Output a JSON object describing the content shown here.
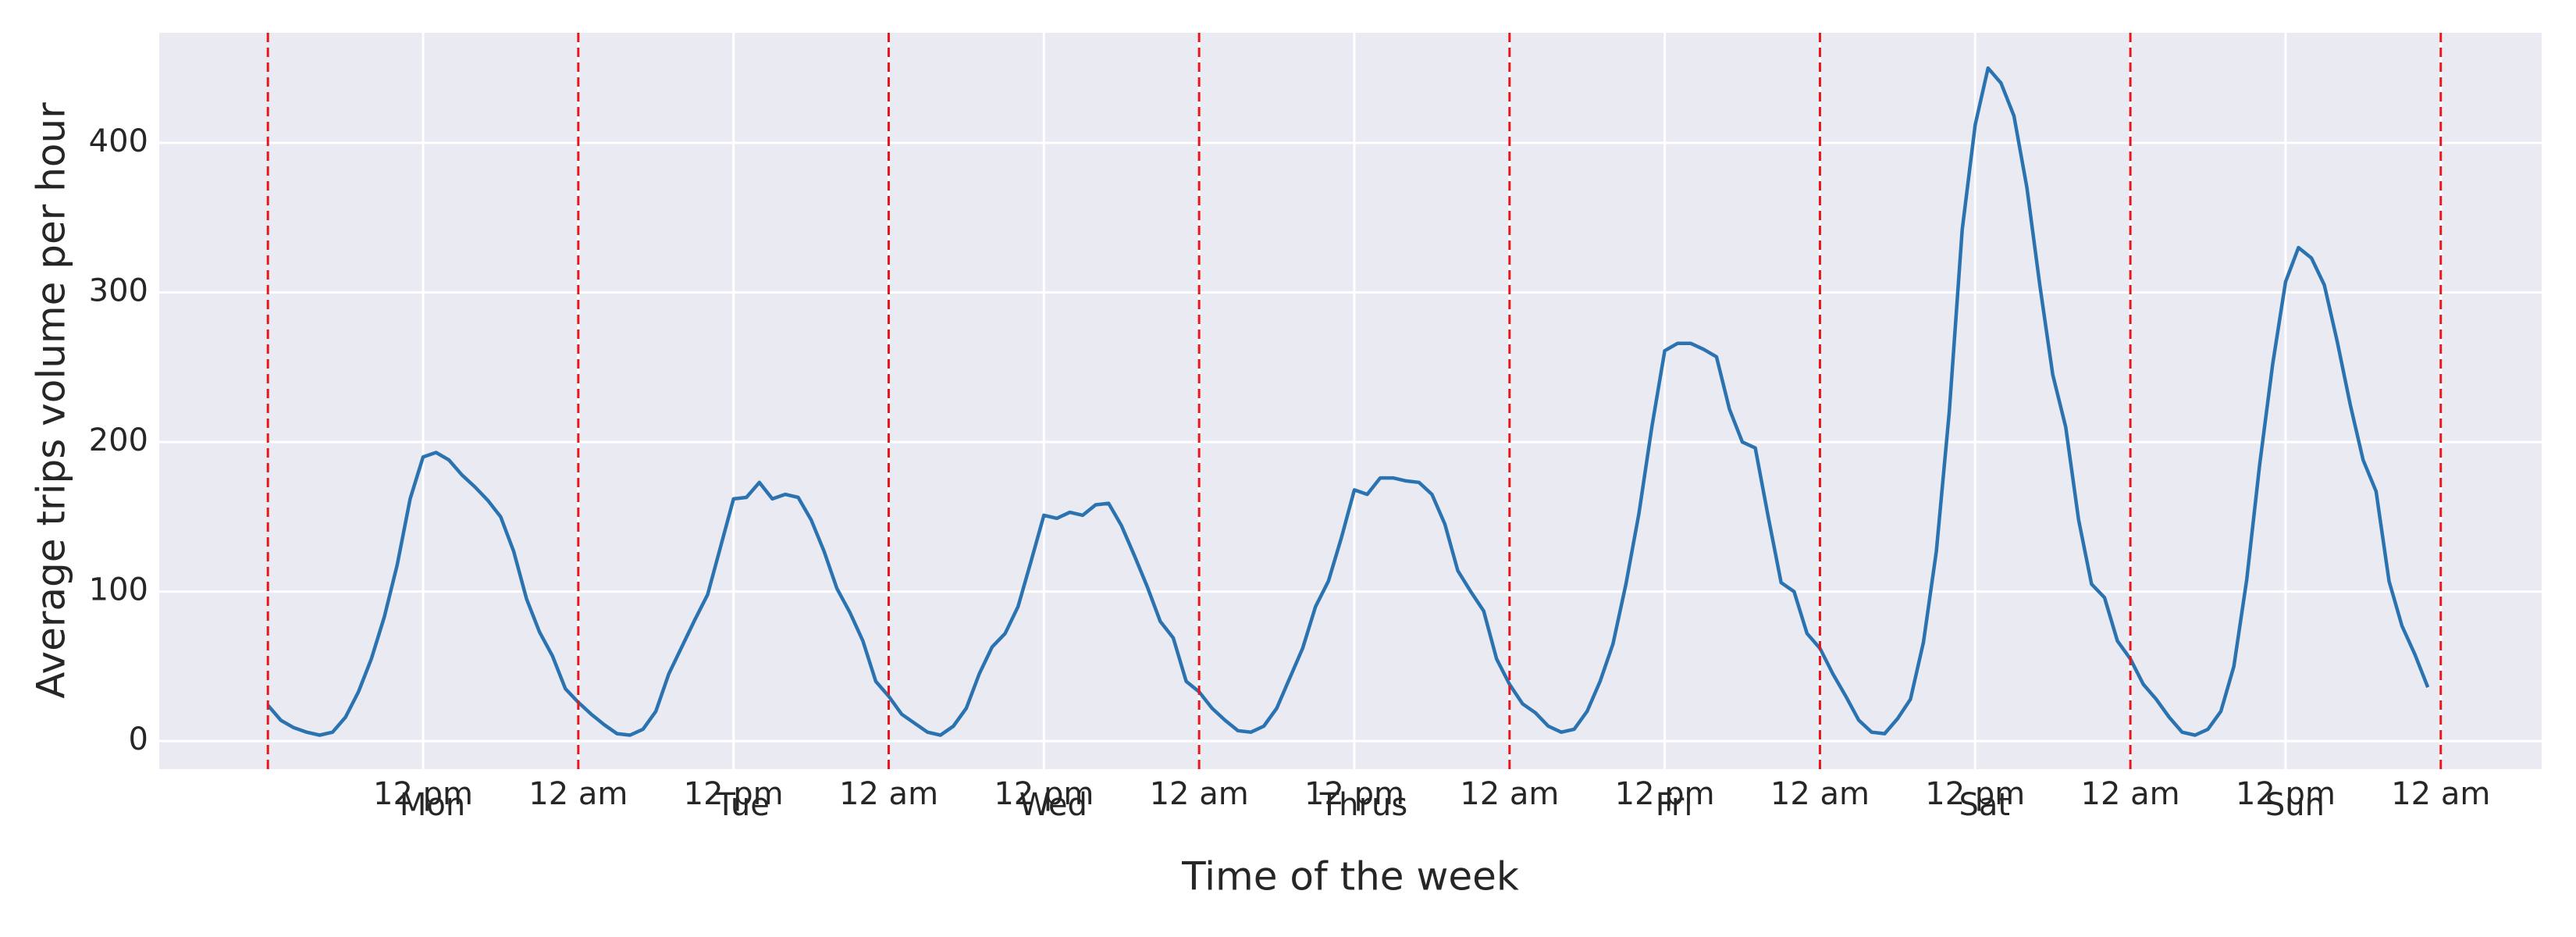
{
  "chart_data": {
    "type": "line",
    "x_label": "Time of the week",
    "y_label": "Average trips volume per hour",
    "x": [
      0,
      1,
      2,
      3,
      4,
      5,
      6,
      7,
      8,
      9,
      10,
      11,
      12,
      13,
      14,
      15,
      16,
      17,
      18,
      19,
      20,
      21,
      22,
      23,
      24,
      25,
      26,
      27,
      28,
      29,
      30,
      31,
      32,
      33,
      34,
      35,
      36,
      37,
      38,
      39,
      40,
      41,
      42,
      43,
      44,
      45,
      46,
      47,
      48,
      49,
      50,
      51,
      52,
      53,
      54,
      55,
      56,
      57,
      58,
      59,
      60,
      61,
      62,
      63,
      64,
      65,
      66,
      67,
      68,
      69,
      70,
      71,
      72,
      73,
      74,
      75,
      76,
      77,
      78,
      79,
      80,
      81,
      82,
      83,
      84,
      85,
      86,
      87,
      88,
      89,
      90,
      91,
      92,
      93,
      94,
      95,
      96,
      97,
      98,
      99,
      100,
      101,
      102,
      103,
      104,
      105,
      106,
      107,
      108,
      109,
      110,
      111,
      112,
      113,
      114,
      115,
      116,
      117,
      118,
      119,
      120,
      121,
      122,
      123,
      124,
      125,
      126,
      127,
      128,
      129,
      130,
      131,
      132,
      133,
      134,
      135,
      136,
      137,
      138,
      139,
      140,
      141,
      142,
      143,
      144,
      145,
      146,
      147,
      148,
      149,
      150,
      151,
      152,
      153,
      154,
      155,
      156,
      157,
      158,
      159,
      160,
      161,
      162,
      163,
      164,
      165,
      166,
      167
    ],
    "series": [
      {
        "color": "#2a73b0",
        "values": [
          24,
          14,
          9,
          6,
          4,
          6,
          16,
          33,
          55,
          83,
          118,
          162,
          190,
          193,
          188,
          178,
          170,
          161,
          150,
          127,
          95,
          73,
          57,
          35,
          26,
          18,
          11,
          5,
          4,
          8,
          20,
          45,
          63,
          81,
          98,
          130,
          162,
          163,
          173,
          162,
          165,
          163,
          148,
          127,
          102,
          86,
          67,
          40,
          30,
          18,
          12,
          6,
          4,
          10,
          22,
          45,
          63,
          72,
          90,
          120,
          151,
          149,
          153,
          151,
          158,
          159,
          144,
          124,
          103,
          80,
          69,
          40,
          33,
          22,
          14,
          7,
          6,
          10,
          22,
          42,
          62,
          90,
          107,
          136,
          168,
          165,
          176,
          176,
          174,
          173,
          165,
          145,
          114,
          100,
          87,
          55,
          38,
          25,
          19,
          10,
          6,
          8,
          20,
          40,
          65,
          105,
          152,
          210,
          261,
          266,
          266,
          262,
          257,
          222,
          200,
          196,
          150,
          106,
          100,
          72,
          62,
          45,
          30,
          14,
          6,
          5,
          15,
          28,
          66,
          127,
          220,
          342,
          412,
          450,
          440,
          418,
          370,
          305,
          245,
          210,
          148,
          105,
          96,
          67,
          55,
          38,
          28,
          16,
          6,
          4,
          8,
          20,
          50,
          108,
          185,
          252,
          307,
          330,
          323,
          305,
          267,
          225,
          188,
          167,
          107,
          77,
          58,
          36
        ]
      }
    ],
    "xlim": [
      -8.4,
      175.8
    ],
    "ylim": [
      -18.7,
      473.6
    ],
    "xticks": [
      {
        "value": 12,
        "label": "12 pm"
      },
      {
        "value": 24,
        "label": "12 am"
      },
      {
        "value": 36,
        "label": "12 pm"
      },
      {
        "value": 48,
        "label": "12 am"
      },
      {
        "value": 60,
        "label": "12 pm"
      },
      {
        "value": 72,
        "label": "12 am"
      },
      {
        "value": 84,
        "label": "12 pm"
      },
      {
        "value": 96,
        "label": "12 am"
      },
      {
        "value": 108,
        "label": "12 pm"
      },
      {
        "value": 120,
        "label": "12 am"
      },
      {
        "value": 132,
        "label": "12 pm"
      },
      {
        "value": 144,
        "label": "12 am"
      },
      {
        "value": 156,
        "label": "12 pm"
      },
      {
        "value": 168,
        "label": "12 am"
      }
    ],
    "yticks": [
      0,
      100,
      200,
      300,
      400
    ],
    "day_labels": [
      "Mon",
      "Tue",
      "Wed",
      "Thrus",
      "Fri",
      "Sat",
      "Sun"
    ],
    "vlines": [
      0,
      24,
      48,
      72,
      96,
      120,
      144,
      168
    ],
    "vline_color": "#e8161b",
    "grid": true
  }
}
